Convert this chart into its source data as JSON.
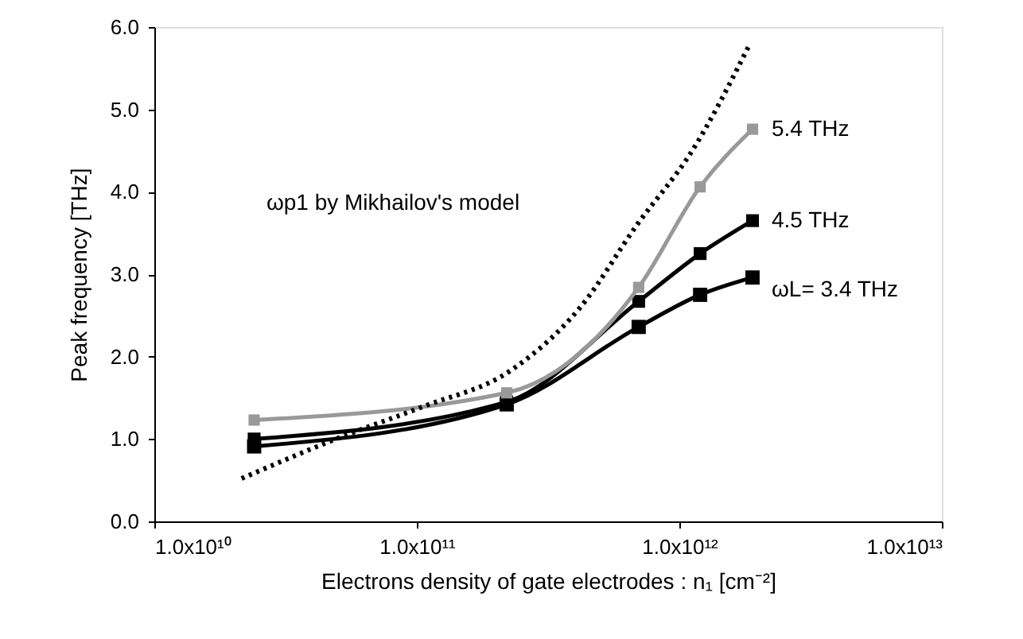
{
  "chart_data": {
    "type": "line",
    "xlabel": "Electrons density of gate electrodes : n₁ [cm⁻²]",
    "ylabel": "Peak frequency  [THz]",
    "log": "x",
    "marker": "square",
    "line_style": "solid",
    "xlim": [
      10000000000.0,
      10000000000000.0
    ],
    "xticks": [
      {
        "value": 10000000000.0,
        "label": "1.0x10¹⁰"
      },
      {
        "value": 100000000000.0,
        "label": "1.0x10¹¹"
      },
      {
        "value": 1000000000000.0,
        "label": "1.0x10¹²"
      },
      {
        "value": 10000000000000.0,
        "label": "1.0x10¹³"
      }
    ],
    "ylim": [
      0,
      6
    ],
    "yticks": [
      {
        "value": 0,
        "label": "0.0"
      },
      {
        "value": 1,
        "label": "1.0"
      },
      {
        "value": 2,
        "label": "2.0"
      },
      {
        "value": 3,
        "label": "3.0"
      },
      {
        "value": 4,
        "label": "4.0"
      },
      {
        "value": 5,
        "label": "5.0"
      },
      {
        "value": 6,
        "label": "6.0"
      }
    ],
    "series": [
      {
        "name": "ωL= 3.4 THz",
        "color": "#000000",
        "x": [
          24000000000.0,
          220000000000.0,
          700000000000.0,
          1200000000000.0,
          1900000000000.0
        ],
        "values": [
          0.91,
          1.42,
          2.36,
          2.75,
          2.96
        ]
      },
      {
        "name": "4.5 THz",
        "color": "#000000",
        "x": [
          24000000000.0,
          220000000000.0,
          700000000000.0,
          1200000000000.0,
          1900000000000.0
        ],
        "values": [
          1.0,
          1.45,
          2.67,
          3.25,
          3.65
        ]
      },
      {
        "name": "5.4 THz",
        "color": "#999999",
        "x": [
          24000000000.0,
          220000000000.0,
          700000000000.0,
          1200000000000.0,
          1900000000000.0
        ],
        "values": [
          1.23,
          1.56,
          2.84,
          4.06,
          4.76
        ]
      },
      {
        "color": "#000000",
        "marker": "none",
        "line_style": "dotted",
        "x": [
          21500000000.0,
          51000000000.0,
          105000000000.0,
          230000000000.0,
          420000000000.0,
          690000000000.0,
          1120000000000.0,
          1860000000000.0
        ],
        "values": [
          0.52,
          1.02,
          1.39,
          1.84,
          2.6,
          3.6,
          4.5,
          5.8
        ]
      }
    ],
    "annotations": [
      "ωp1 by Mikhailov's model"
    ]
  }
}
